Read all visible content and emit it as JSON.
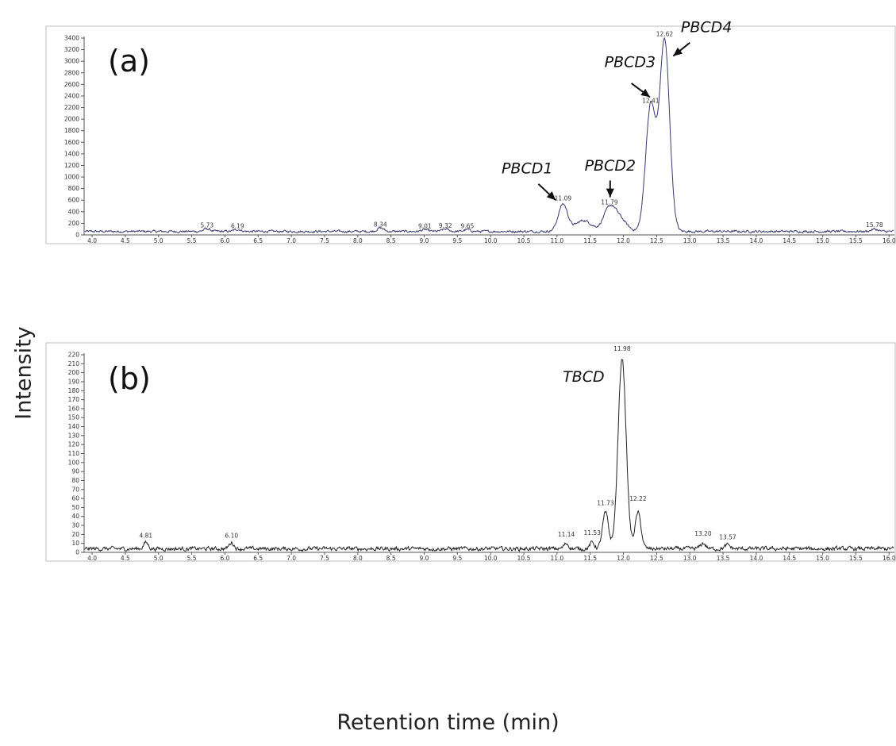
{
  "figure": {
    "ylabel": "Intensity",
    "xlabel": "Retention time (min)"
  },
  "chart_data": [
    {
      "type": "line",
      "panel_label": "(a)",
      "xlim": [
        3.88,
        16.08
      ],
      "ylim": [
        0,
        3400
      ],
      "x_ticks": [
        "4.0",
        "4.5",
        "5.0",
        "5.5",
        "6.0",
        "6.5",
        "7.0",
        "7.5",
        "8.0",
        "8.5",
        "9.0",
        "9.5",
        "10.0",
        "10.5",
        "11.0",
        "11.5",
        "12.0",
        "12.5",
        "13.0",
        "13.5",
        "14.0",
        "14.5",
        "15.0",
        "15.5",
        "16.0"
      ],
      "y_ticks": [
        "0",
        "200",
        "400",
        "600",
        "800",
        "1000",
        "1200",
        "1400",
        "1600",
        "1800",
        "2000",
        "2200",
        "2400",
        "2600",
        "2800",
        "3000",
        "3200",
        "3400"
      ],
      "line_color": "#3a3a6e",
      "peaks": [
        {
          "x": 5.73,
          "y": 75,
          "width": 0.05
        },
        {
          "x": 6.19,
          "y": 65,
          "width": 0.05
        },
        {
          "x": 8.34,
          "y": 90,
          "width": 0.05
        },
        {
          "x": 9.01,
          "y": 60,
          "width": 0.05
        },
        {
          "x": 9.32,
          "y": 70,
          "width": 0.05
        },
        {
          "x": 9.65,
          "y": 60,
          "width": 0.05
        },
        {
          "x": 11.09,
          "y": 500,
          "width": 0.07
        },
        {
          "x": 11.4,
          "y": 220,
          "width": 0.12
        },
        {
          "x": 11.79,
          "y": 420,
          "width": 0.09
        },
        {
          "x": 11.95,
          "y": 230,
          "width": 0.1
        },
        {
          "x": 12.41,
          "y": 2200,
          "width": 0.075
        },
        {
          "x": 12.62,
          "y": 3320,
          "width": 0.075
        },
        {
          "x": 15.78,
          "y": 70,
          "width": 0.05
        }
      ],
      "baseline": 60,
      "noise": 35,
      "peak_labels": [
        {
          "x": 5.73,
          "y": 75,
          "text": "5.73"
        },
        {
          "x": 6.19,
          "y": 65,
          "text": "6.19"
        },
        {
          "x": 8.34,
          "y": 90,
          "text": "8.34"
        },
        {
          "x": 9.01,
          "y": 60,
          "text": "9.01"
        },
        {
          "x": 9.32,
          "y": 70,
          "text": "9.32"
        },
        {
          "x": 9.65,
          "y": 60,
          "text": "9.65"
        },
        {
          "x": 11.09,
          "y": 540,
          "text": "11.09"
        },
        {
          "x": 11.79,
          "y": 470,
          "text": "11.79"
        },
        {
          "x": 12.41,
          "y": 2230,
          "text": "12.41"
        },
        {
          "x": 12.62,
          "y": 3380,
          "text": "12.62"
        },
        {
          "x": 15.78,
          "y": 80,
          "text": "15.78"
        }
      ],
      "annotations": [
        {
          "text": "PBCD1",
          "tx": 10.55,
          "ty": 1060,
          "ax1": 10.72,
          "ay1": 880,
          "ax2": 10.98,
          "ay2": 600
        },
        {
          "text": "PBCD2",
          "tx": 11.8,
          "ty": 1110,
          "ax1": 11.8,
          "ay1": 940,
          "ax2": 11.8,
          "ay2": 650
        },
        {
          "text": "PBCD3",
          "tx": 12.1,
          "ty": 2900,
          "ax1": 12.12,
          "ay1": 2620,
          "ax2": 12.4,
          "ay2": 2380
        },
        {
          "text": "PBCD4",
          "tx": 13.25,
          "ty": 3500,
          "ax1": 13.0,
          "ay1": 3320,
          "ax2": 12.75,
          "ay2": 3090
        }
      ]
    },
    {
      "type": "line",
      "panel_label": "(b)",
      "xlim": [
        3.88,
        16.08
      ],
      "ylim": [
        0,
        220
      ],
      "x_ticks": [
        "4.0",
        "4.5",
        "5.0",
        "5.5",
        "6.0",
        "6.5",
        "7.0",
        "7.5",
        "8.0",
        "8.5",
        "9.0",
        "9.5",
        "10.0",
        "10.5",
        "11.0",
        "11.5",
        "12.0",
        "12.5",
        "13.0",
        "13.5",
        "14.0",
        "14.5",
        "15.0",
        "15.5",
        "16.0"
      ],
      "y_ticks": [
        "0",
        "10",
        "20",
        "30",
        "40",
        "50",
        "60",
        "70",
        "80",
        "90",
        "100",
        "110",
        "120",
        "130",
        "140",
        "150",
        "160",
        "170",
        "180",
        "190",
        "200",
        "210",
        "220"
      ],
      "line_color": "#222222",
      "peaks": [
        {
          "x": 4.81,
          "y": 9,
          "width": 0.035
        },
        {
          "x": 6.1,
          "y": 9,
          "width": 0.035
        },
        {
          "x": 11.14,
          "y": 8,
          "width": 0.035
        },
        {
          "x": 11.53,
          "y": 9,
          "width": 0.035
        },
        {
          "x": 11.73,
          "y": 42,
          "width": 0.045
        },
        {
          "x": 11.98,
          "y": 214,
          "width": 0.06
        },
        {
          "x": 12.22,
          "y": 42,
          "width": 0.045
        },
        {
          "x": 13.2,
          "y": 8,
          "width": 0.04
        },
        {
          "x": 13.57,
          "y": 6,
          "width": 0.04
        }
      ],
      "baseline": 4,
      "noise": 4,
      "peak_labels": [
        {
          "x": 4.81,
          "y": 13,
          "text": "4.81"
        },
        {
          "x": 6.1,
          "y": 13,
          "text": "6.10"
        },
        {
          "x": 11.14,
          "y": 14,
          "text": "11.14"
        },
        {
          "x": 11.53,
          "y": 16,
          "text": "11.53"
        },
        {
          "x": 11.73,
          "y": 49,
          "text": "11.73"
        },
        {
          "x": 11.98,
          "y": 221,
          "text": "11.98"
        },
        {
          "x": 12.22,
          "y": 54,
          "text": "12.22"
        },
        {
          "x": 13.2,
          "y": 15,
          "text": "13.20"
        },
        {
          "x": 13.57,
          "y": 11,
          "text": "13.57"
        }
      ],
      "annotations": [
        {
          "text": "TBCD",
          "tx": 11.4,
          "ty": 190
        }
      ]
    }
  ]
}
